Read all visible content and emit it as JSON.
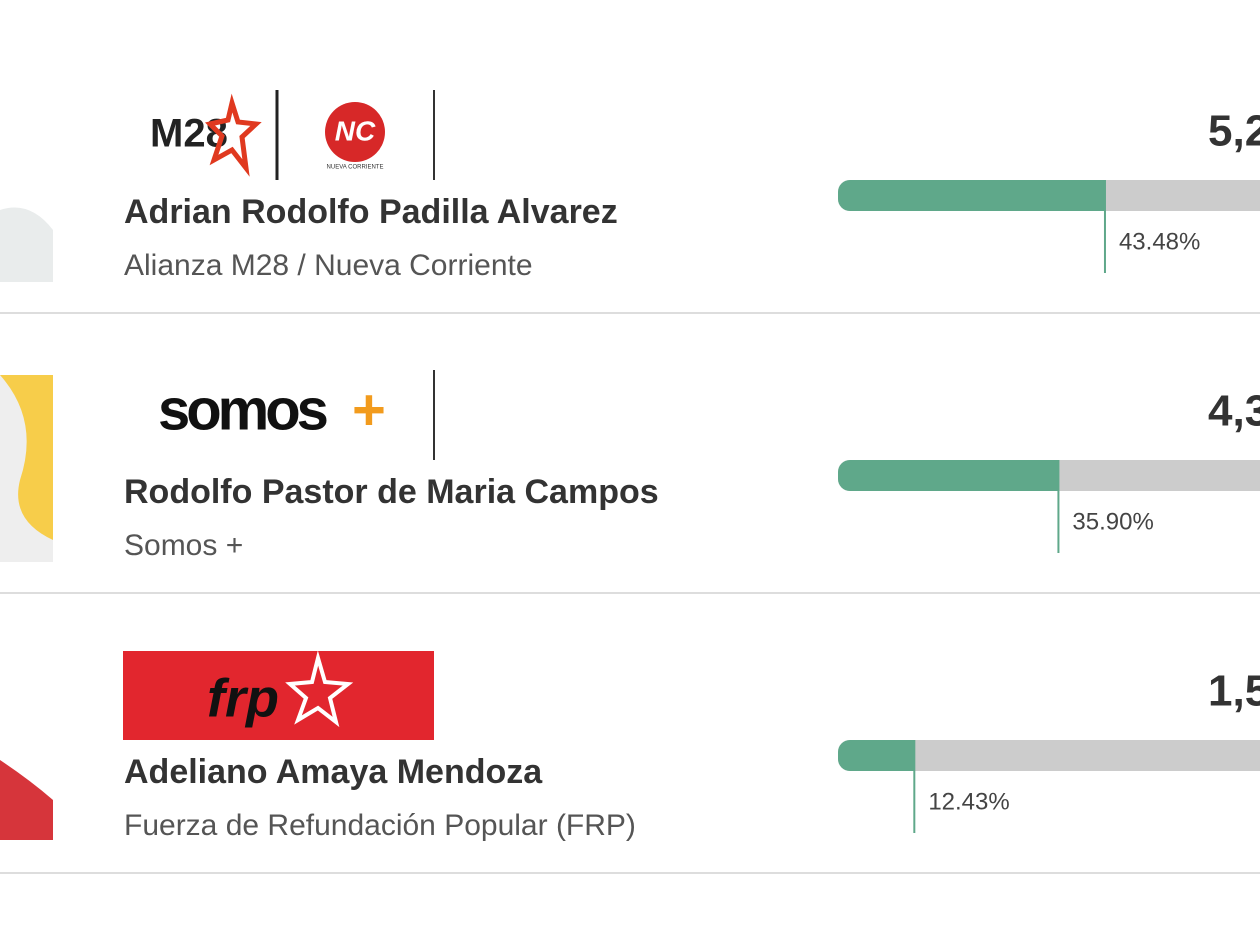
{
  "candidates": [
    {
      "name": "Adrian Rodolfo Padilla Alvarez",
      "party": "Alianza M28 / Nueva Corriente",
      "logo_texts": [
        "M28",
        "NC",
        "NUEVA CORRIENTE"
      ],
      "votes": "5,2",
      "percent": {
        "value": 43.48,
        "label": "43.48%"
      }
    },
    {
      "name": "Rodolfo Pastor de Maria Campos",
      "party": "Somos +",
      "logo_texts": [
        "somos",
        "+"
      ],
      "votes": "4,3",
      "percent": {
        "value": 35.9,
        "label": "35.90%"
      }
    },
    {
      "name": "Adeliano Amaya Mendoza",
      "party": "Fuerza de Refundación Popular (FRP)",
      "logo_texts": [
        "frp"
      ],
      "votes": "1,5",
      "percent": {
        "value": 12.43,
        "label": "12.43%"
      }
    }
  ]
}
